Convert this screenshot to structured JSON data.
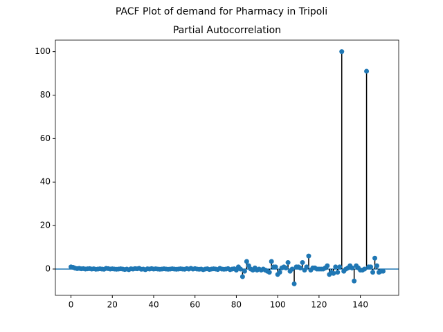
{
  "chart_data": {
    "type": "stem",
    "suptitle": "PACF Plot of demand for Pharmacy in Tripoli",
    "title": "Partial Autocorrelation",
    "x": [
      0,
      1,
      2,
      3,
      4,
      5,
      6,
      7,
      8,
      9,
      10,
      11,
      12,
      13,
      14,
      15,
      16,
      17,
      18,
      19,
      20,
      21,
      22,
      23,
      24,
      25,
      26,
      27,
      28,
      29,
      30,
      31,
      32,
      33,
      34,
      35,
      36,
      37,
      38,
      39,
      40,
      41,
      42,
      43,
      44,
      45,
      46,
      47,
      48,
      49,
      50,
      51,
      52,
      53,
      54,
      55,
      56,
      57,
      58,
      59,
      60,
      61,
      62,
      63,
      64,
      65,
      66,
      67,
      68,
      69,
      70,
      71,
      72,
      73,
      74,
      75,
      76,
      77,
      78,
      79,
      80,
      81,
      82,
      83,
      84,
      85,
      86,
      87,
      88,
      89,
      90,
      91,
      92,
      93,
      94,
      95,
      96,
      97,
      98,
      99,
      100,
      101,
      102,
      103,
      104,
      105,
      106,
      107,
      108,
      109,
      110,
      111,
      112,
      113,
      114,
      115,
      116,
      117,
      118,
      119,
      120,
      121,
      122,
      123,
      124,
      125,
      126,
      127,
      128,
      129,
      130,
      131,
      132,
      133,
      134,
      135,
      136,
      137,
      138,
      139,
      140,
      141,
      142,
      143,
      144,
      145,
      146,
      147,
      148,
      149,
      150,
      151
    ],
    "values": [
      1,
      0.8,
      0.4,
      0.2,
      0.3,
      0.1,
      0.2,
      0,
      0.1,
      0.2,
      0,
      0.1,
      -0.1,
      0,
      0.1,
      0,
      -0.1,
      0.3,
      0.2,
      0,
      0.1,
      0,
      -0.1,
      0,
      0.1,
      0,
      -0.2,
      0,
      -0.3,
      0.1,
      0,
      0.2,
      0.1,
      0.3,
      -0.1,
      0,
      -0.3,
      0.1,
      0,
      0.2,
      0,
      0.1,
      0,
      -0.1,
      0,
      0.1,
      0,
      -0.1,
      0,
      0.1,
      0,
      -0.1,
      0,
      0.1,
      0,
      -0.1,
      0.2,
      0,
      0.3,
      0,
      0.2,
      0,
      -0.1,
      0,
      -0.3,
      0,
      0.1,
      -0.2,
      0,
      0.1,
      0,
      -0.2,
      0.3,
      0,
      -0.1,
      0,
      0.2,
      -0.3,
      0,
      0.1,
      -0.5,
      1,
      0,
      -3.5,
      -1,
      3.5,
      1.5,
      0,
      -0.5,
      0.5,
      -0.5,
      0,
      -0.5,
      0,
      -0.5,
      -1,
      -1.5,
      3.5,
      1,
      1,
      -2.5,
      -1.5,
      0.5,
      1,
      0.5,
      3,
      -1,
      0,
      -6.8,
      1,
      1,
      0.5,
      3,
      -0.5,
      1,
      6,
      -0.5,
      0.5,
      0.5,
      0,
      0,
      0,
      0,
      0.5,
      1.5,
      -2.5,
      -1.5,
      -2,
      1,
      -1.5,
      1,
      100,
      -1,
      0,
      0.5,
      1.5,
      0.5,
      -5.5,
      1.5,
      0.5,
      -0.5,
      -0.5,
      0,
      91,
      1,
      1,
      -1.5,
      5,
      1.5,
      -1.5,
      -1,
      -1
    ],
    "marker_color": "#1f77b4",
    "stem_color": "#000000",
    "baseline_color": "#1f77b4",
    "xlim": [
      -7.55,
      158.55
    ],
    "xticks": [
      0,
      20,
      40,
      60,
      80,
      100,
      120,
      140
    ],
    "ylim": [
      -12.1,
      105.3
    ],
    "yticks": [
      0,
      20,
      40,
      60,
      80,
      100
    ]
  }
}
